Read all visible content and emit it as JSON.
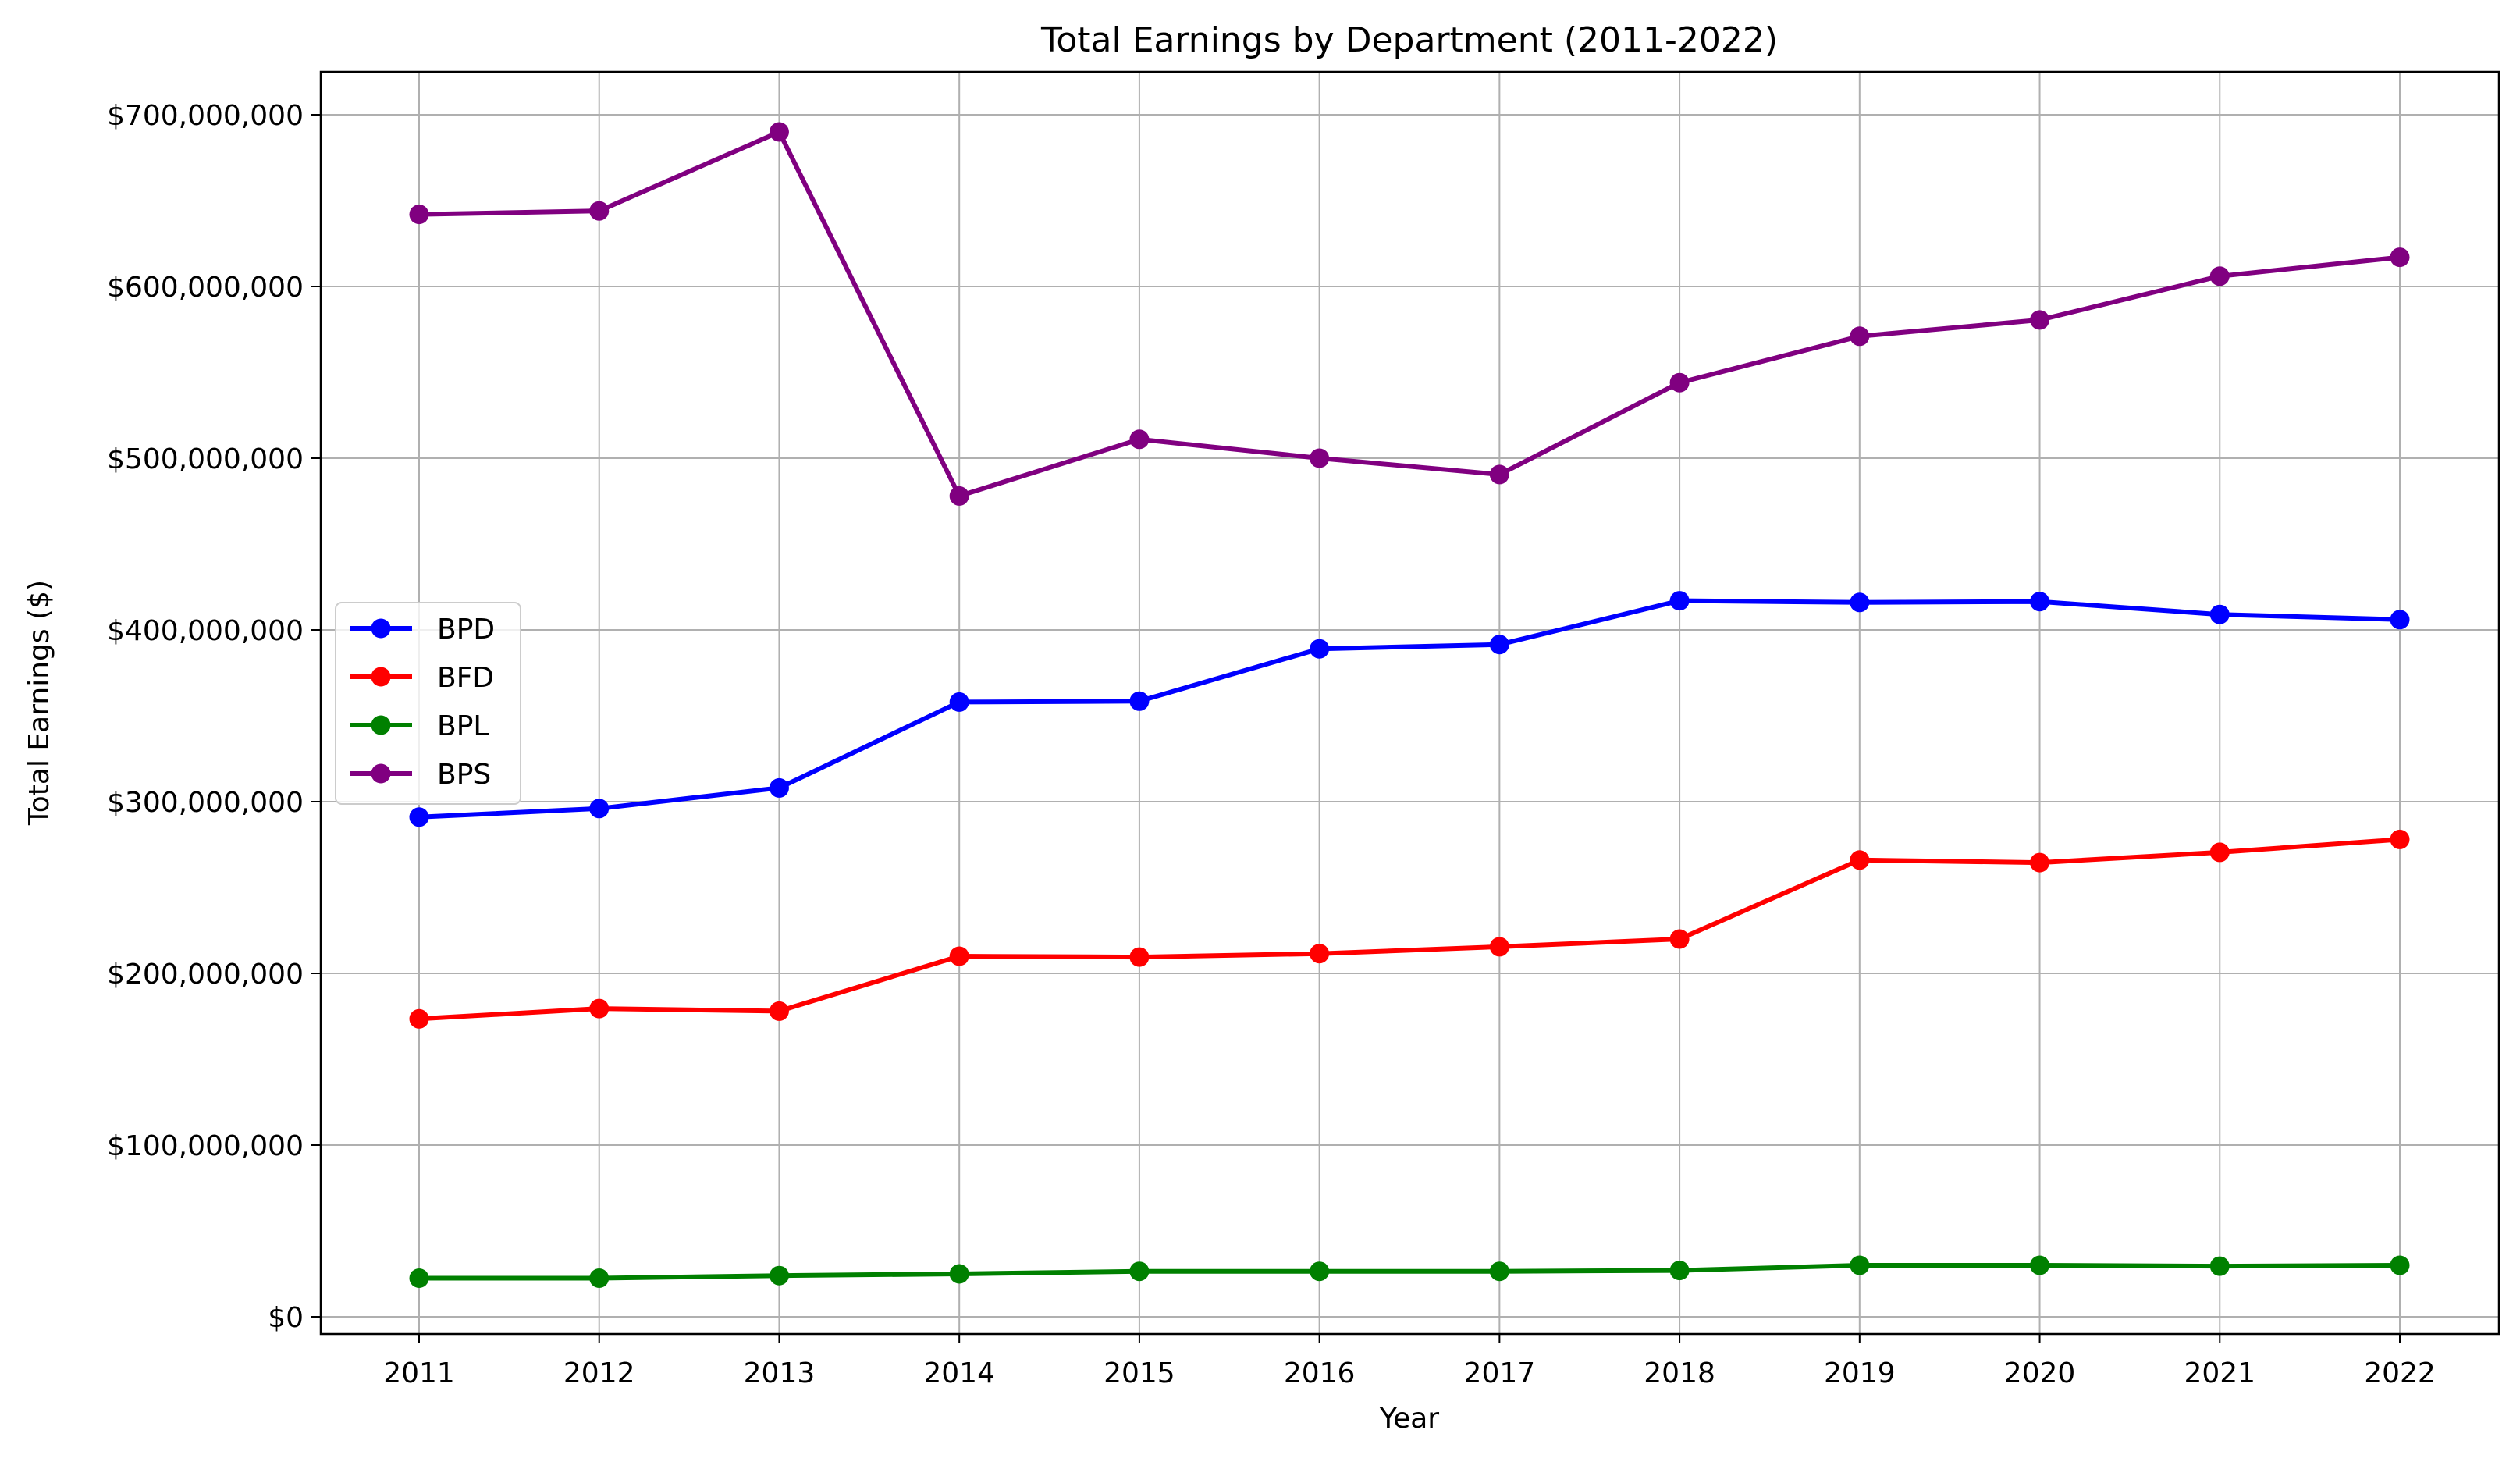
{
  "chart_data": {
    "type": "line",
    "title": "Total Earnings by Department (2011-2022)",
    "xlabel": "Year",
    "ylabel": "Total Earnings ($)",
    "x": [
      2011,
      2012,
      2013,
      2014,
      2015,
      2016,
      2017,
      2018,
      2019,
      2020,
      2021,
      2022
    ],
    "xticks": [
      "2011",
      "2012",
      "2013",
      "2014",
      "2015",
      "2016",
      "2017",
      "2018",
      "2019",
      "2020",
      "2021",
      "2022"
    ],
    "ylim": [
      -10000000,
      725000000
    ],
    "yticks": [
      0,
      100000000,
      200000000,
      300000000,
      400000000,
      500000000,
      600000000,
      700000000
    ],
    "ytick_labels": [
      "$0",
      "$100,000,000",
      "$200,000,000",
      "$300,000,000",
      "$400,000,000",
      "$500,000,000",
      "$600,000,000",
      "$700,000,000"
    ],
    "grid": true,
    "legend_position": "center-left",
    "series": [
      {
        "name": "BPD",
        "color": "#0000ff",
        "values": [
          291000000,
          296000000,
          308000000,
          358000000,
          358500000,
          389000000,
          391500000,
          417000000,
          416000000,
          416500000,
          409000000,
          406000000
        ]
      },
      {
        "name": "BFD",
        "color": "#ff0000",
        "values": [
          173500000,
          179500000,
          178000000,
          210000000,
          209500000,
          211500000,
          215500000,
          220000000,
          266000000,
          264500000,
          270500000,
          278000000
        ]
      },
      {
        "name": "BPL",
        "color": "#008000",
        "values": [
          22500000,
          22500000,
          24000000,
          25000000,
          26500000,
          26500000,
          26500000,
          27000000,
          30000000,
          30000000,
          29500000,
          30000000
        ]
      },
      {
        "name": "BPS",
        "color": "#800080",
        "values": [
          642000000,
          644000000,
          690000000,
          478000000,
          511000000,
          500000000,
          490500000,
          544000000,
          571000000,
          580500000,
          606000000,
          617000000
        ]
      }
    ]
  }
}
